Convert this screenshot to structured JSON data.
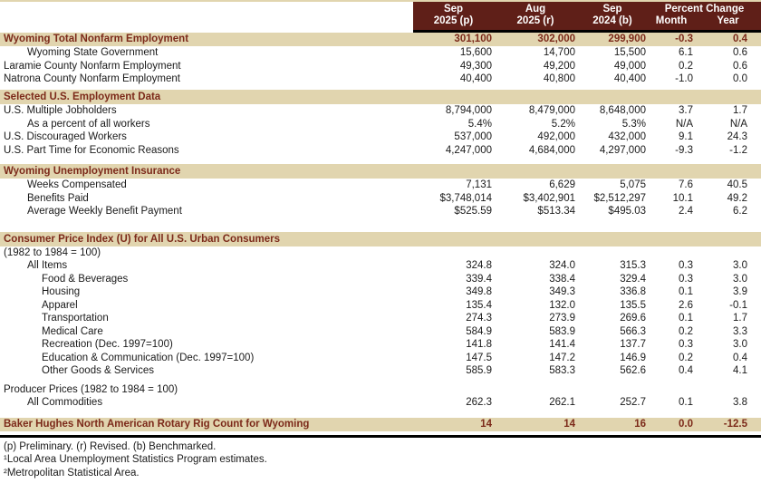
{
  "colors": {
    "header_bg": "#5f1f18",
    "header_text": "#ffffff",
    "band_bg": "#e1d5af",
    "accent_text": "#7c2a1a",
    "body_text": "#1a1a1a",
    "rule": "#000000"
  },
  "header": {
    "columns": [
      {
        "line1": "Sep",
        "line2": "2025 (p)"
      },
      {
        "line1": "Aug",
        "line2": "2025 (r)"
      },
      {
        "line1": "Sep",
        "line2": "2024 (b)"
      }
    ],
    "percent_change": {
      "label": "Percent Change",
      "sub": [
        "Month",
        "Year"
      ]
    }
  },
  "table": {
    "rows": [
      {
        "type": "highlight",
        "indent": 0,
        "label": "Wyoming Total Nonfarm Employment",
        "values": [
          "301,100",
          "302,000",
          "299,900",
          "-0.3",
          "0.4"
        ]
      },
      {
        "type": "data",
        "indent": 1,
        "label": "Wyoming State Government",
        "values": [
          "15,600",
          "14,700",
          "15,500",
          "6.1",
          "0.6"
        ]
      },
      {
        "type": "data",
        "indent": 0,
        "label": "Laramie County Nonfarm Employment",
        "values": [
          "49,300",
          "49,200",
          "49,000",
          "0.2",
          "0.6"
        ]
      },
      {
        "type": "data",
        "indent": 0,
        "label": "Natrona County Nonfarm Employment",
        "values": [
          "40,400",
          "40,800",
          "40,400",
          "-1.0",
          "0.0"
        ]
      },
      {
        "type": "gap",
        "size": "xs"
      },
      {
        "type": "section",
        "indent": 0,
        "label": "Selected U.S. Employment Data",
        "values": []
      },
      {
        "type": "data",
        "indent": 0,
        "label": "U.S. Multiple Jobholders",
        "values": [
          "8,794,000",
          "8,479,000",
          "8,648,000",
          "3.7",
          "1.7"
        ]
      },
      {
        "type": "data",
        "indent": 1,
        "label": "As a percent of all workers",
        "values": [
          "5.4%",
          "5.2%",
          "5.3%",
          "N/A",
          "N/A"
        ]
      },
      {
        "type": "data",
        "indent": 0,
        "label": "U.S. Discouraged Workers",
        "values": [
          "537,000",
          "492,000",
          "432,000",
          "9.1",
          "24.3"
        ]
      },
      {
        "type": "data",
        "indent": 0,
        "label": "U.S. Part Time for Economic Reasons",
        "values": [
          "4,247,000",
          "4,684,000",
          "4,297,000",
          "-9.3",
          "-1.2"
        ]
      },
      {
        "type": "gap",
        "size": "m"
      },
      {
        "type": "section",
        "indent": 0,
        "label": "Wyoming Unemployment Insurance",
        "values": []
      },
      {
        "type": "data",
        "indent": 1,
        "label": "Weeks Compensated",
        "values": [
          "7,131",
          "6,629",
          "5,075",
          "7.6",
          "40.5"
        ]
      },
      {
        "type": "data",
        "indent": 1,
        "label": "Benefits Paid",
        "values": [
          "$3,748,014",
          "$3,402,901",
          "$2,512,297",
          "10.1",
          "49.2"
        ]
      },
      {
        "type": "data",
        "indent": 1,
        "label": "Average Weekly Benefit Payment",
        "values": [
          "$525.59",
          "$513.34",
          "$495.03",
          "2.4",
          "6.2"
        ]
      },
      {
        "type": "gap",
        "size": "xl"
      },
      {
        "type": "section",
        "indent": 0,
        "label": "Consumer Price Index (U) for All U.S. Urban Consumers",
        "values": []
      },
      {
        "type": "plain",
        "indent": 0,
        "label": "(1982 to 1984 = 100)",
        "values": []
      },
      {
        "type": "data",
        "indent": 1,
        "label": "All Items",
        "values": [
          "324.8",
          "324.0",
          "315.3",
          "0.3",
          "3.0"
        ]
      },
      {
        "type": "data",
        "indent": 2,
        "label": "Food & Beverages",
        "values": [
          "339.4",
          "338.4",
          "329.4",
          "0.3",
          "3.0"
        ]
      },
      {
        "type": "data",
        "indent": 2,
        "label": "Housing",
        "values": [
          "349.8",
          "349.3",
          "336.8",
          "0.1",
          "3.9"
        ]
      },
      {
        "type": "data",
        "indent": 2,
        "label": "Apparel",
        "values": [
          "135.4",
          "132.0",
          "135.5",
          "2.6",
          "-0.1"
        ]
      },
      {
        "type": "data",
        "indent": 2,
        "label": "Transportation",
        "values": [
          "274.3",
          "273.9",
          "269.6",
          "0.1",
          "1.7"
        ]
      },
      {
        "type": "data",
        "indent": 2,
        "label": "Medical Care",
        "values": [
          "584.9",
          "583.9",
          "566.3",
          "0.2",
          "3.3"
        ]
      },
      {
        "type": "data",
        "indent": 2,
        "label": "Recreation (Dec. 1997=100)",
        "values": [
          "141.8",
          "141.4",
          "137.7",
          "0.3",
          "3.0"
        ]
      },
      {
        "type": "data",
        "indent": 2,
        "label": "Education & Communication (Dec. 1997=100)",
        "values": [
          "147.5",
          "147.2",
          "146.9",
          "0.2",
          "0.4"
        ]
      },
      {
        "type": "data",
        "indent": 2,
        "label": "Other Goods & Services",
        "values": [
          "585.9",
          "583.3",
          "562.6",
          "0.4",
          "4.1"
        ]
      },
      {
        "type": "gap",
        "size": "s"
      },
      {
        "type": "plain",
        "indent": 0,
        "label": "Producer Prices (1982 to 1984 = 100)",
        "values": []
      },
      {
        "type": "data",
        "indent": 1,
        "label": "All Commodities",
        "values": [
          "262.3",
          "262.1",
          "252.7",
          "0.1",
          "3.8"
        ]
      },
      {
        "type": "gap",
        "size": "l"
      },
      {
        "type": "highlight",
        "indent": 0,
        "label": "Baker Hughes North American Rotary Rig Count for Wyoming",
        "values": [
          "14",
          "14",
          "16",
          "0.0",
          "-12.5"
        ]
      }
    ]
  },
  "footnotes": [
    "(p) Preliminary. (r) Revised. (b) Benchmarked.",
    "¹Local Area Unemployment Statistics Program estimates.",
    "²Metropolitan Statistical Area."
  ]
}
